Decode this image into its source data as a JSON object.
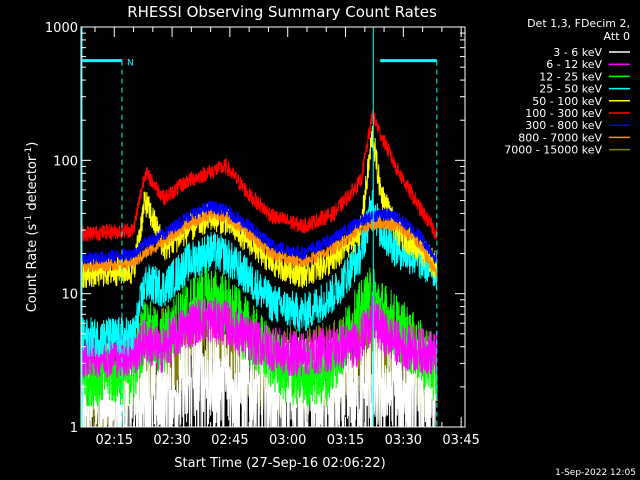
{
  "chart_data": {
    "type": "line",
    "title": "RHESSI Observing Summary Count Rates",
    "xlabel": "Start Time (27-Sep-16 02:06:22)",
    "ylabel_parts": [
      "Count Rate (s",
      "-1",
      " detector",
      "-1",
      ")"
    ],
    "yscale": "log",
    "ylim": [
      1,
      1000
    ],
    "y_ticks": [
      {
        "value": 1,
        "label": "1"
      },
      {
        "value": 10,
        "label": "10"
      },
      {
        "value": 100,
        "label": "100"
      },
      {
        "value": 1000,
        "label": "1000"
      }
    ],
    "x_unit": "minutes since 02:00",
    "xlim": [
      6.37,
      106
    ],
    "x_ticks": [
      {
        "value": 15,
        "label": "02:15"
      },
      {
        "value": 30,
        "label": "02:30"
      },
      {
        "value": 45,
        "label": "02:45"
      },
      {
        "value": 60,
        "label": "03:00"
      },
      {
        "value": 75,
        "label": "03:15"
      },
      {
        "value": 90,
        "label": "03:30"
      },
      {
        "value": 105,
        "label": "03:45"
      }
    ],
    "legend_header": [
      "Det 1,3, FDecim 2,",
      "Att 0"
    ],
    "series": [
      {
        "name": "3 - 6 keV",
        "color": "#ffffff",
        "x": [
          6.4,
          20,
          26,
          40,
          52,
          65,
          76,
          83,
          92,
          98.7
        ],
        "values": [
          1.6,
          1.7,
          1.6,
          2.4,
          1.8,
          1.7,
          1.7,
          2.0,
          1.8,
          1.6
        ]
      },
      {
        "name": "6 - 12 keV",
        "color": "#ff00ff",
        "x": [
          6.4,
          20,
          23,
          27,
          33,
          38,
          44,
          50,
          60,
          66,
          78,
          82,
          85,
          90,
          98.7
        ],
        "values": [
          3.5,
          3.5,
          4.5,
          3.7,
          5.5,
          6.5,
          6.0,
          4.5,
          3.5,
          3.6,
          4.2,
          6.5,
          5.0,
          4.0,
          3.5
        ]
      },
      {
        "name": "12 - 25 keV",
        "color": "#00ff00",
        "x": [
          6.4,
          20,
          23,
          27,
          33,
          39,
          44,
          50,
          60,
          70,
          78,
          82,
          85,
          90,
          98.7
        ],
        "values": [
          2.5,
          2.6,
          5.5,
          4.0,
          7.0,
          9.5,
          8.0,
          5.0,
          2.5,
          2.5,
          6.5,
          9.5,
          7.0,
          5.0,
          2.6
        ]
      },
      {
        "name": "25 - 50 keV",
        "color": "#00ffff",
        "x": [
          6.4,
          20,
          23,
          28,
          34,
          40,
          44,
          50,
          56,
          64,
          72,
          79,
          82,
          84,
          88,
          94,
          98.7
        ],
        "values": [
          4.7,
          4.8,
          12,
          11,
          17,
          21,
          19,
          13,
          8.5,
          7.0,
          10,
          20,
          48,
          30,
          22,
          18,
          15
        ]
      },
      {
        "name": "50 - 100 keV",
        "color": "#ffff00",
        "x": [
          6.4,
          20,
          23,
          28,
          34,
          40,
          44,
          50,
          56,
          64,
          72,
          79,
          82,
          84,
          88,
          94,
          98.7
        ],
        "values": [
          14,
          15,
          50,
          22,
          30,
          38,
          35,
          25,
          17,
          14,
          18,
          30,
          160,
          60,
          30,
          22,
          16
        ]
      },
      {
        "name": "100 - 300 keV",
        "color": "#ff0000",
        "x": [
          6.4,
          20,
          23,
          28,
          34,
          40,
          44,
          50,
          56,
          64,
          72,
          79,
          82,
          84,
          88,
          94,
          98.7
        ],
        "values": [
          28,
          30,
          82,
          52,
          70,
          82,
          90,
          55,
          38,
          32,
          40,
          70,
          220,
          160,
          90,
          45,
          28
        ]
      },
      {
        "name": "300 - 800 keV",
        "color": "#0000ff",
        "x": [
          6.4,
          20,
          23,
          28,
          34,
          40,
          44,
          50,
          56,
          64,
          72,
          79,
          84,
          88,
          94,
          98.7
        ],
        "values": [
          18,
          20,
          24,
          28,
          38,
          45,
          42,
          32,
          23,
          20,
          26,
          35,
          40,
          38,
          28,
          18
        ]
      },
      {
        "name": "800 - 7000 keV",
        "color": "#ff8c00",
        "x": [
          6.4,
          20,
          23,
          28,
          34,
          40,
          44,
          50,
          56,
          64,
          72,
          79,
          84,
          88,
          94,
          98.7
        ],
        "values": [
          16,
          17,
          20,
          25,
          33,
          40,
          38,
          28,
          20,
          17,
          22,
          31,
          34,
          33,
          24,
          14
        ]
      },
      {
        "name": "7000 - 15000 keV",
        "color": "#808000",
        "x": [
          6.4,
          20,
          26,
          40,
          52,
          65,
          76,
          83,
          92,
          98.7
        ],
        "values": [
          1.6,
          2.5,
          3.5,
          4.5,
          3.0,
          2.5,
          3.5,
          4.5,
          3.0,
          2.0
        ]
      }
    ],
    "attenuator_markers": [
      {
        "label": "N",
        "x_start": 6.4,
        "x_end": 17.0,
        "dashed_x": 17.0
      },
      {
        "label": "",
        "x_start": 84.0,
        "x_end": 98.7,
        "dashed_x": 98.7
      }
    ],
    "event_line_x": 82.2,
    "footer_date": "1-Sep-2022 12:05"
  }
}
